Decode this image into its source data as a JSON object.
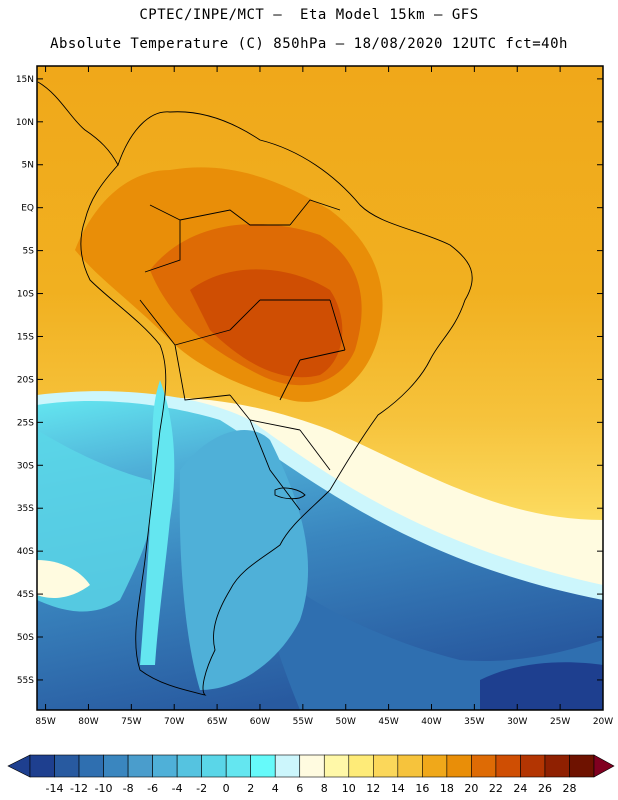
{
  "header": {
    "line1": "CPTEC/INPE/MCT –  Eta Model 15km – GFS",
    "line2": "Absolute Temperature (C) 850hPa – 18/08/2020 12UTC fct=40h"
  },
  "axes": {
    "lat_labels": [
      "15N",
      "10N",
      "5N",
      "EQ",
      "5S",
      "10S",
      "15S",
      "20S",
      "25S",
      "30S",
      "35S",
      "40S",
      "45S",
      "50S",
      "55S"
    ],
    "lat_values": [
      15,
      10,
      5,
      0,
      -5,
      -10,
      -15,
      -20,
      -25,
      -30,
      -35,
      -40,
      -45,
      -50,
      -55
    ],
    "lon_labels": [
      "85W",
      "80W",
      "75W",
      "70W",
      "65W",
      "60W",
      "55W",
      "50W",
      "45W",
      "40W",
      "35W",
      "30W",
      "25W",
      "20W"
    ],
    "lon_values": [
      -85,
      -80,
      -75,
      -70,
      -65,
      -60,
      -55,
      -50,
      -45,
      -40,
      -35,
      -30,
      -25,
      -20
    ],
    "lon_range": [
      -86,
      -20
    ],
    "lat_range": [
      -58.5,
      16.5
    ]
  },
  "colorbar": {
    "labels": [
      "-14",
      "-12",
      "-10",
      "-8",
      "-6",
      "-4",
      "-2",
      "0",
      "2",
      "4",
      "6",
      "8",
      "10",
      "12",
      "14",
      "16",
      "18",
      "20",
      "22",
      "24",
      "26",
      "28"
    ],
    "colors": [
      "#1e3f8f",
      "#285aa0",
      "#2f6fb0",
      "#3a86bf",
      "#4a9dcc",
      "#4fb0d8",
      "#55c3e0",
      "#5ad6e8",
      "#64e6f0",
      "#66fafa",
      "#ccf6fc",
      "#fffbe0",
      "#fff8a8",
      "#feeb78",
      "#fbd75a",
      "#f6c33c",
      "#f0a81a",
      "#e98e08",
      "#de6b05",
      "#cf4e03",
      "#b33502",
      "#8f2001",
      "#6e1200",
      "#800020"
    ],
    "unit": "C"
  }
}
